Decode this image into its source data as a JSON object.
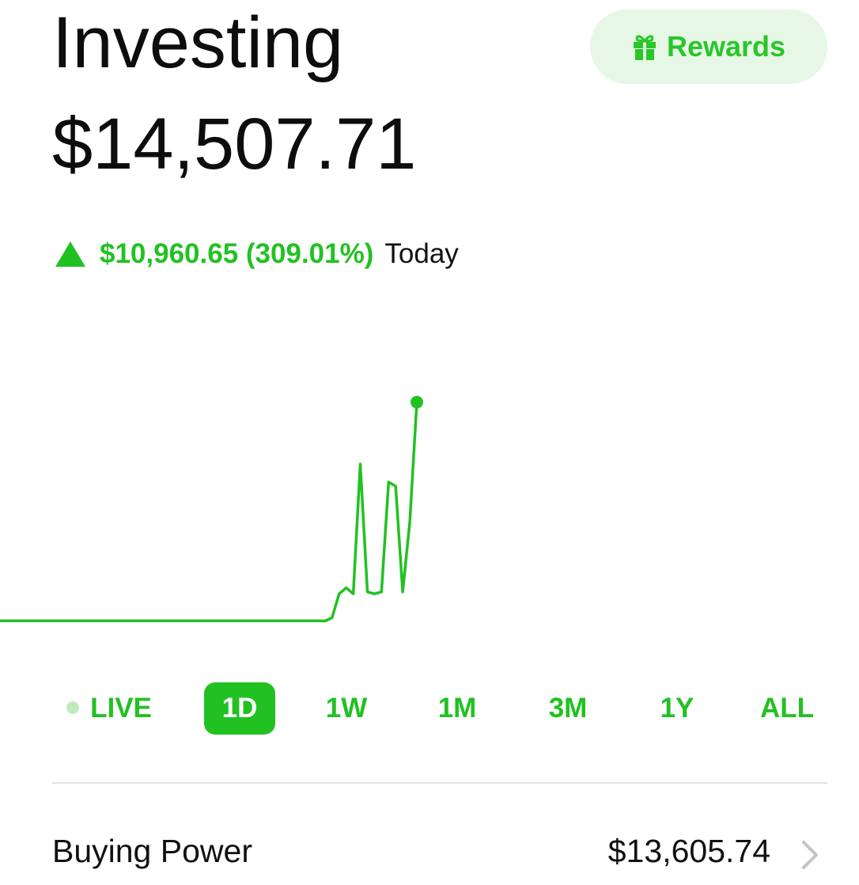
{
  "header": {
    "title": "Investing",
    "balance": "$14,507.71",
    "rewards_label": "Rewards",
    "rewards_icon": "gift-icon"
  },
  "change": {
    "direction": "up",
    "amount": "$10,960.65 (309.01%)",
    "period": "Today",
    "color": "#22c122"
  },
  "chart_data": {
    "type": "line",
    "color": "#22c122",
    "values": [
      3547,
      3547,
      3547,
      3547,
      3547,
      3547,
      3548,
      3547,
      3547,
      3547,
      3547,
      3547,
      3547,
      3547,
      3547,
      3547,
      3547,
      3547,
      3547,
      3547,
      3547,
      3547,
      3547,
      3547,
      3547,
      3547,
      3547,
      3547,
      3547,
      3547,
      3547,
      3547,
      3547,
      3547,
      3547,
      3547,
      3547,
      3547,
      3547,
      3547,
      3547,
      3547,
      3547,
      3547,
      3547,
      3547,
      3540,
      3700,
      4900,
      5200,
      4900,
      11400,
      5000,
      4900,
      5000,
      10500,
      10300,
      5000,
      8500,
      14507.71
    ],
    "end_marker": true,
    "grid": false,
    "axes_visible": false
  },
  "ranges": {
    "items": [
      "LIVE",
      "1D",
      "1W",
      "1M",
      "3M",
      "1Y",
      "ALL"
    ],
    "selected": "1D"
  },
  "buying_power": {
    "label": "Buying Power",
    "value": "$13,605.74"
  }
}
